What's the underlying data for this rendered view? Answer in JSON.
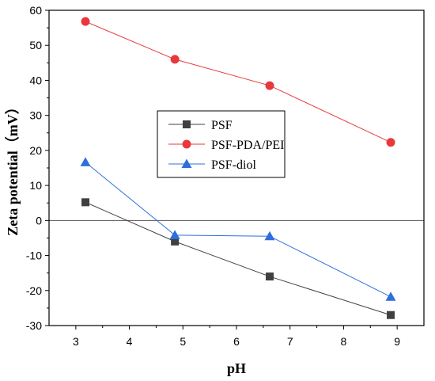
{
  "chart_data": {
    "type": "line",
    "xlabel": "pH",
    "ylabel": "Zeta potential（mV）",
    "xlim": [
      2.5,
      9.5
    ],
    "ylim": [
      -30,
      60
    ],
    "xticks": [
      3,
      4,
      5,
      6,
      7,
      8,
      9
    ],
    "yticks": [
      -30,
      -20,
      -10,
      0,
      10,
      20,
      30,
      40,
      50,
      60
    ],
    "x_tick_labels": [
      "3",
      "4",
      "5",
      "6",
      "7",
      "8",
      "9"
    ],
    "y_tick_labels": [
      "-30",
      "-20",
      "-10",
      "0",
      "10",
      "20",
      "30",
      "40",
      "50",
      "60"
    ],
    "zero_line": true,
    "grid": false,
    "legend_position": "center-left",
    "series": [
      {
        "name": "PSF",
        "color": "#404040",
        "marker": "square",
        "x": [
          3.18,
          4.85,
          6.62,
          8.88
        ],
        "y": [
          5.2,
          -6.0,
          -16.0,
          -27.0
        ]
      },
      {
        "name": "PSF-PDA/PEI",
        "color": "#e8383d",
        "marker": "circle",
        "x": [
          3.18,
          4.85,
          6.62,
          8.88
        ],
        "y": [
          56.8,
          46.0,
          38.5,
          22.3
        ]
      },
      {
        "name": "PSF-diol",
        "color": "#2f6fdc",
        "marker": "triangle",
        "x": [
          3.18,
          4.85,
          6.62,
          8.88
        ],
        "y": [
          16.6,
          -4.2,
          -4.5,
          -21.8
        ]
      }
    ]
  }
}
